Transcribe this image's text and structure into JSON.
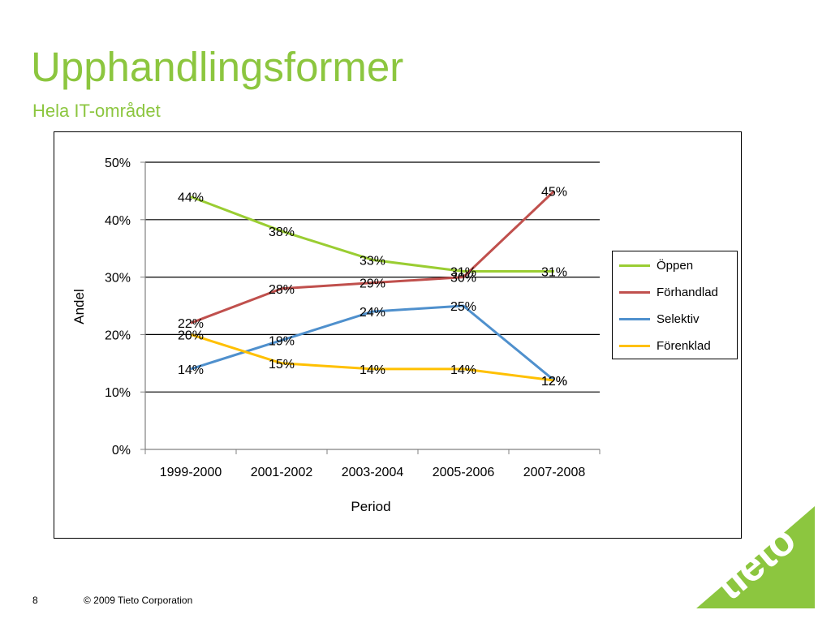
{
  "slide": {
    "title": "Upphandlingsformer",
    "subtitle": "Hela IT-området",
    "page_number": "8",
    "copyright": "© 2009 Tieto Corporation",
    "brand_color": "#8cc63f",
    "logo_text": "tieto"
  },
  "chart_data": {
    "type": "line",
    "categories": [
      "1999-2000",
      "2001-2002",
      "2003-2004",
      "2005-2006",
      "2007-2008"
    ],
    "xlabel": "Period",
    "ylabel": "Andel",
    "ylim": [
      0,
      50
    ],
    "yticks": [
      0,
      10,
      20,
      30,
      40,
      50
    ],
    "ytick_labels": [
      "0%",
      "10%",
      "20%",
      "30%",
      "40%",
      "50%"
    ],
    "grid": true,
    "legend_position": "right",
    "series": [
      {
        "name": "Öppen",
        "color": "#9acd32",
        "values": [
          44,
          38,
          33,
          31,
          31
        ],
        "labels": [
          "44%",
          "38%",
          "33%",
          "31%",
          "31%"
        ]
      },
      {
        "name": "Förhandlad",
        "color": "#c0504d",
        "values": [
          22,
          28,
          29,
          30,
          45
        ],
        "labels": [
          "22%",
          "28%",
          "29%",
          "30%",
          "45%"
        ]
      },
      {
        "name": "Selektiv",
        "color": "#4f90cd",
        "values": [
          14,
          19,
          24,
          25,
          12
        ],
        "labels": [
          "14%",
          "19%",
          "24%",
          "25%",
          "12%"
        ]
      },
      {
        "name": "Förenklad",
        "color": "#ffc000",
        "values": [
          20,
          15,
          14,
          14,
          12
        ],
        "labels": [
          "20%",
          "15%",
          "14%",
          "14%",
          "12%"
        ]
      }
    ]
  }
}
